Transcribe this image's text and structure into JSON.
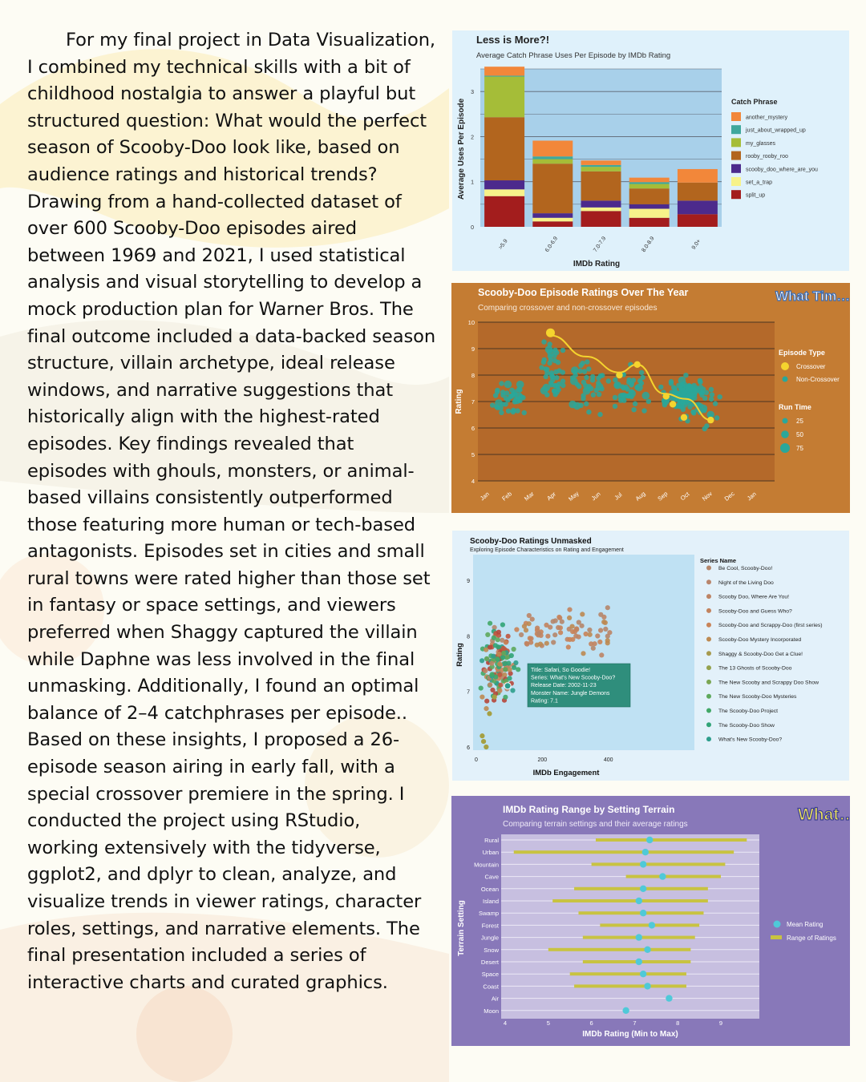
{
  "essay": {
    "text": "For my final project in Data Visualization, I combined my technical skills with a bit of childhood nostalgia to answer a playful but structured question: What would the perfect season of Scooby-Doo look like, based on audience ratings and historical trends? Drawing from a hand-collected dataset of over 600 Scooby-Doo episodes aired between 1969 and 2021, I used statistical analysis and visual storytelling to develop a mock production plan for Warner Bros. The final outcome included a data-backed season structure, villain archetype, ideal release windows, and narrative suggestions that historically align with the highest-rated episodes. Key findings revealed that episodes with ghouls, monsters, or animal-based villains consistently outperformed those featuring more human or tech-based antagonists. Episodes set in cities and small rural towns were rated higher than those set in fantasy or space settings, and viewers preferred when Shaggy captured the villain while Daphne was less involved in the final unmasking. Additionally, I found an optimal balance of 2–4 catchphrases per episode.. Based on these insights, I proposed a 26-episode season airing in early fall, with a special crossover premiere in the spring. I conducted the project using RStudio, working extensively with the tidyverse, ggplot2, and dplyr to clean, analyze, and visualize trends in viewer ratings, character roles, settings, and narrative elements. The final presentation included a series of interactive charts and curated graphics."
  },
  "chart_data": [
    {
      "type": "bar",
      "title": "Less is More?!",
      "subtitle": "Average Catch Phrase Uses Per Episode by IMDb Rating",
      "xlabel": "IMDb Rating",
      "ylabel": "Average Uses Per Episode",
      "ylim": [
        0,
        3.5
      ],
      "yticks": [
        0,
        1,
        2,
        3
      ],
      "stacked": true,
      "legend_title": "Catch Phrase",
      "legend_position": "right",
      "categories": [
        ">5.9",
        "6.0-6.9",
        "7.0-7.9",
        "8.0-8.9",
        "9.0+"
      ],
      "series": [
        {
          "name": "split_up",
          "color": "#a31d1d",
          "values": [
            0.68,
            0.12,
            0.35,
            0.2,
            0.28
          ]
        },
        {
          "name": "set_a_trap",
          "color": "#f7f28a",
          "values": [
            0.15,
            0.08,
            0.08,
            0.2,
            0.0
          ]
        },
        {
          "name": "scooby_doo_where_are_you",
          "color": "#4c2a8c",
          "values": [
            0.2,
            0.1,
            0.15,
            0.1,
            0.3
          ]
        },
        {
          "name": "rooby_rooby_roo",
          "color": "#b2651e",
          "values": [
            1.4,
            1.1,
            0.65,
            0.35,
            0.4
          ]
        },
        {
          "name": "my_glasses",
          "color": "#a5bd38",
          "values": [
            0.9,
            0.1,
            0.1,
            0.1,
            0.0
          ]
        },
        {
          "name": "just_about_wrapped_up",
          "color": "#3fa89c",
          "values": [
            0.02,
            0.06,
            0.04,
            0.04,
            0.0
          ]
        },
        {
          "name": "another_mystery",
          "color": "#f2873a",
          "values": [
            0.2,
            0.35,
            0.1,
            0.1,
            0.3
          ]
        }
      ],
      "grid": true
    },
    {
      "type": "scatter",
      "title": "Scooby-Doo Episode Ratings Over The Year",
      "subtitle": "Comparing crossover and non-crossover episodes",
      "side_text": "What Tim… to Pre…",
      "ylabel": "Rating",
      "ylim": [
        4,
        10
      ],
      "yticks": [
        4,
        5,
        6,
        7,
        8,
        9,
        10
      ],
      "xticks": [
        "Jan",
        "Feb",
        "Mar",
        "Apr",
        "May",
        "Jun",
        "Jul",
        "Aug",
        "Sep",
        "Oct",
        "Nov",
        "Dec",
        "Jan"
      ],
      "legend": {
        "episode_type_title": "Episode Type",
        "crossover_label": "Crossover",
        "noncrossover_label": "Non-Crossover",
        "run_time_title": "Run Time",
        "run_time_values": [
          "25",
          "50",
          "75"
        ]
      },
      "crossover_points": [
        {
          "month": 3.9,
          "rating": 9.6
        },
        {
          "month": 7.0,
          "rating": 8.0
        },
        {
          "month": 7.8,
          "rating": 8.4
        },
        {
          "month": 9.1,
          "rating": 7.2
        },
        {
          "month": 9.4,
          "rating": 6.9
        },
        {
          "month": 9.9,
          "rating": 6.4
        },
        {
          "month": 11.1,
          "rating": 6.3
        }
      ],
      "crossover_trend": [
        {
          "month": 3.9,
          "rating": 9.5
        },
        {
          "month": 5.5,
          "rating": 8.7
        },
        {
          "month": 7.0,
          "rating": 8.1
        },
        {
          "month": 7.8,
          "rating": 8.4
        },
        {
          "month": 9.0,
          "rating": 7.3
        },
        {
          "month": 10.0,
          "rating": 7.1
        },
        {
          "month": 11.1,
          "rating": 6.3
        }
      ],
      "colors": {
        "crossover": "#f5d42e",
        "noncrossover": "#2aa79a"
      },
      "grid": true
    },
    {
      "type": "scatter",
      "title": "Scooby-Doo Ratings Unmasked",
      "subtitle": "Exploring Episode Characteristics on Rating and Engagement",
      "xlabel": "IMDb Engagement",
      "ylabel": "Rating",
      "xlim": [
        0,
        600
      ],
      "xticks": [
        0,
        200,
        400
      ],
      "ylim": [
        5.9,
        9.6
      ],
      "yticks": [
        6,
        7,
        8,
        9
      ],
      "legend_title": "Series Name",
      "legend_position": "right",
      "series": [
        {
          "name": "Be Cool, Scooby-Doo!",
          "color": "#b5866a"
        },
        {
          "name": "Night of the Living Doo",
          "color": "#b9856c"
        },
        {
          "name": "Scooby Doo, Where Are You!",
          "color": "#bd8465"
        },
        {
          "name": "Scooby-Doo and Guess Who?",
          "color": "#c2835e"
        },
        {
          "name": "Scooby-Doo and Scrappy-Doo (first series)",
          "color": "#c98358"
        },
        {
          "name": "Scooby-Doo Mystery Incorporated",
          "color": "#bd8a52"
        },
        {
          "name": "Shaggy & Scooby-Doo Get a Clue!",
          "color": "#a79a4e"
        },
        {
          "name": "The 13 Ghosts of Scooby-Doo",
          "color": "#94a24e"
        },
        {
          "name": "The New Scooby and Scrappy Doo Show",
          "color": "#7ba653"
        },
        {
          "name": "The New Scooby-Doo Mysteries",
          "color": "#5ea95c"
        },
        {
          "name": "The Scooby-Doo Project",
          "color": "#43a867"
        },
        {
          "name": "The Scooby-Doo Show",
          "color": "#31a477"
        },
        {
          "name": "What's New Scooby-Doo?",
          "color": "#2e9e8c"
        }
      ],
      "tooltip": [
        "Title: Safari, So Goodie!",
        "Series: What's New Scooby-Doo?",
        "Release Date: 2002-11-23",
        "Monster Name: Jungle Demons",
        "Rating: 7.1"
      ],
      "highlight_point": {
        "x": 95,
        "y": 7.1
      }
    },
    {
      "type": "range",
      "title": "IMDb Rating Range by Setting Terrain",
      "subtitle": "Comparing terrain settings and their average ratings",
      "side_text": "What… the…",
      "xlabel": "IMDb Rating (Min to Max)",
      "ylabel": "Terrain Setting",
      "xlim": [
        3.6,
        10.1
      ],
      "xticks": [
        4,
        5,
        6,
        7,
        8,
        9
      ],
      "legend": {
        "mean_label": "Mean Rating",
        "range_label": "Range of Ratings"
      },
      "colors": {
        "mean": "#4fc9d8",
        "range": "#c8c341"
      },
      "categories": [
        "Rural",
        "Urban",
        "Mountain",
        "Cave",
        "Ocean",
        "Island",
        "Swamp",
        "Forest",
        "Jungle",
        "Snow",
        "Desert",
        "Space",
        "Coast",
        "Air",
        "Moon"
      ],
      "min": [
        6.1,
        4.2,
        6.0,
        6.8,
        5.6,
        5.1,
        5.7,
        6.2,
        5.8,
        5.0,
        5.8,
        5.5,
        5.6,
        null,
        null
      ],
      "max": [
        9.6,
        9.3,
        9.1,
        9.0,
        8.7,
        8.7,
        8.6,
        8.5,
        8.4,
        8.3,
        8.3,
        8.2,
        8.2,
        null,
        null
      ],
      "mean": [
        7.35,
        7.25,
        7.2,
        7.65,
        7.2,
        7.1,
        7.2,
        7.4,
        7.1,
        7.3,
        7.1,
        7.2,
        7.3,
        7.8,
        6.8
      ]
    }
  ]
}
